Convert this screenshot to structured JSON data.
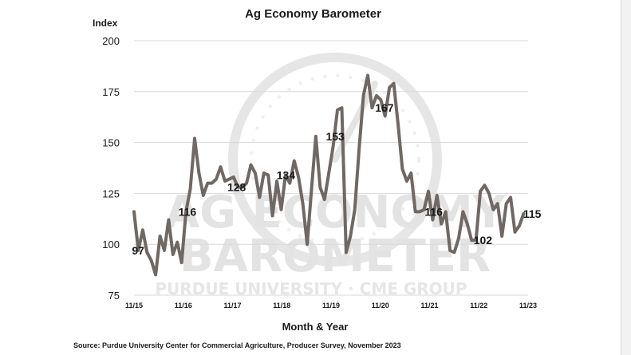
{
  "chart_data": {
    "type": "line",
    "title": "Ag Economy Barometer",
    "ylabel": "Index",
    "xlabel": "Month & Year",
    "ylim": [
      75,
      200
    ],
    "yticks": [
      75,
      100,
      125,
      150,
      175,
      200
    ],
    "xlim": [
      0,
      96
    ],
    "xticks": [
      {
        "x": 0,
        "label": "11/15"
      },
      {
        "x": 12,
        "label": "11/16"
      },
      {
        "x": 24,
        "label": "11/17"
      },
      {
        "x": 36,
        "label": "11/18"
      },
      {
        "x": 48,
        "label": "11/19"
      },
      {
        "x": 60,
        "label": "11/20"
      },
      {
        "x": 72,
        "label": "11/21"
      },
      {
        "x": 84,
        "label": "11/22"
      },
      {
        "x": 96,
        "label": "11/23"
      }
    ],
    "grid": true,
    "line_color": "#6f6864",
    "watermark": {
      "line1": "AG ECONOMY",
      "line2": "BAROMETER",
      "line3": "PURDUE UNIVERSITY · CME GROUP"
    },
    "series": [
      {
        "values": [
          116,
          97,
          107,
          96,
          92,
          85,
          104,
          97,
          112,
          95,
          101,
          91,
          116,
          127,
          152,
          135,
          124,
          130,
          130,
          132,
          138,
          131,
          132,
          133,
          128,
          128,
          130,
          139,
          135,
          123,
          135,
          134,
          114,
          131,
          117,
          134,
          130,
          141,
          133,
          120,
          100,
          127,
          153,
          128,
          122,
          135,
          148,
          166,
          167,
          96,
          104,
          117,
          147,
          173,
          183,
          167,
          173,
          171,
          163,
          177,
          179,
          159,
          137,
          131,
          135,
          116,
          116,
          117,
          126,
          112,
          124,
          110,
          116,
          97,
          96,
          103,
          116,
          110,
          102,
          102,
          126,
          129,
          125,
          117,
          120,
          104,
          120,
          123,
          106,
          109,
          115
        ],
        "x_start": 0,
        "x_step": 1.0545
      }
    ],
    "annotations": [
      {
        "x": 1,
        "y": 97,
        "text": "97"
      },
      {
        "x": 13,
        "y": 116,
        "text": "116"
      },
      {
        "x": 25,
        "y": 128,
        "text": "128"
      },
      {
        "x": 37,
        "y": 134,
        "text": "134"
      },
      {
        "x": 49,
        "y": 153,
        "text": "153"
      },
      {
        "x": 61,
        "y": 167,
        "text": "167"
      },
      {
        "x": 73,
        "y": 116,
        "text": "116"
      },
      {
        "x": 85,
        "y": 102,
        "text": "102"
      },
      {
        "x": 97,
        "y": 115,
        "text": "115"
      }
    ]
  },
  "source": "Source: Purdue University Center for Commercial Agriculture, Producer Survey, November 2023"
}
